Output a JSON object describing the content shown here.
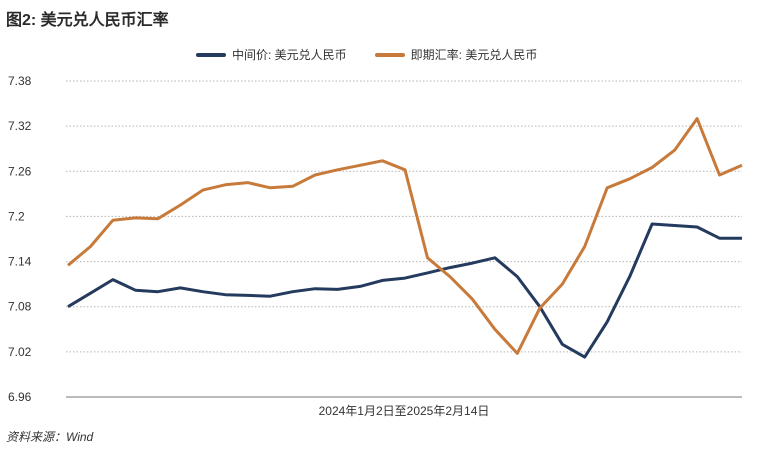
{
  "title": "图2: 美元兑人民币汇率",
  "source": "资料来源：Wind",
  "chart_data": {
    "type": "line",
    "title": "图2: 美元兑人民币汇率",
    "xlabel": "2024年1月2日至2025年2月14日",
    "ylabel": "",
    "ylim": [
      6.96,
      7.38
    ],
    "yticks": [
      "7.38",
      "7.32",
      "7.26",
      "7.2",
      "7.14",
      "7.08",
      "7.02",
      "6.96"
    ],
    "grid": "horizontal",
    "legend_position": "top",
    "x_start": "2024-01-02",
    "x_end": "2025-02-14",
    "x_count": 31,
    "series": [
      {
        "name": "中间价: 美元兑人民币",
        "color": "#243a5e",
        "values": [
          7.08,
          7.098,
          7.116,
          7.102,
          7.1,
          7.105,
          7.1,
          7.096,
          7.095,
          7.094,
          7.1,
          7.104,
          7.103,
          7.107,
          7.115,
          7.118,
          7.125,
          7.132,
          7.138,
          7.145,
          7.12,
          7.08,
          7.03,
          7.013,
          7.06,
          7.12,
          7.19,
          7.188,
          7.186,
          7.171,
          7.171
        ]
      },
      {
        "name": "即期汇率: 美元兑人民币",
        "color": "#c87a3a",
        "values": [
          7.135,
          7.16,
          7.195,
          7.198,
          7.197,
          7.215,
          7.235,
          7.242,
          7.245,
          7.238,
          7.24,
          7.255,
          7.262,
          7.268,
          7.274,
          7.262,
          7.145,
          7.12,
          7.09,
          7.05,
          7.018,
          7.078,
          7.11,
          7.16,
          7.238,
          7.25,
          7.265,
          7.288,
          7.33,
          7.255,
          7.268
        ]
      }
    ]
  }
}
